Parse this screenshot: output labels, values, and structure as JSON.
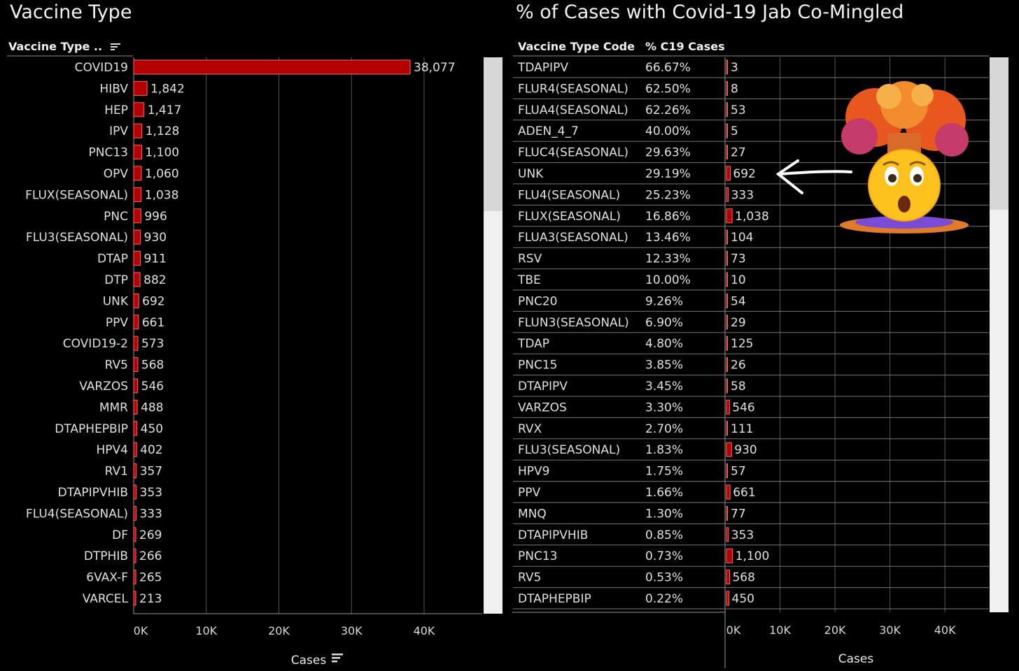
{
  "left_title": "Vaccine Type",
  "right_title": "% of Cases with Covid-19 Jab Co-Mingled",
  "left_header": "Vaccine Type ..",
  "right_header_code": "Vaccine Type Code",
  "right_header_pct": "% C19 Cases",
  "colors": {
    "bar": "#b30000",
    "bar_outline": "#ff6666",
    "background": "#000000",
    "grid": "#555555"
  },
  "icons": [
    "sort-icon",
    "exploding-head-emoji-icon",
    "arrow-left-icon"
  ],
  "chart_data": [
    {
      "type": "bar",
      "orientation": "horizontal",
      "title": "Vaccine Type",
      "xlabel": "Cases",
      "xlim": [
        0,
        48000
      ],
      "xticks": [
        "0K",
        "10K",
        "20K",
        "30K",
        "40K"
      ],
      "categories": [
        "COVID19",
        "HIBV",
        "HEP",
        "IPV",
        "PNC13",
        "OPV",
        "FLUX(SEASONAL)",
        "PNC",
        "FLU3(SEASONAL)",
        "DTAP",
        "DTP",
        "UNK",
        "PPV",
        "COVID19-2",
        "RV5",
        "VARZOS",
        "MMR",
        "DTAPHEPBIP",
        "HPV4",
        "RV1",
        "DTAPIPVHIB",
        "FLU4(SEASONAL)",
        "DF",
        "DTPHIB",
        "6VAX-F",
        "VARCEL"
      ],
      "values": [
        38077,
        1842,
        1417,
        1128,
        1100,
        1060,
        1038,
        996,
        930,
        911,
        882,
        692,
        661,
        573,
        568,
        546,
        488,
        450,
        402,
        357,
        353,
        333,
        269,
        266,
        265,
        213
      ],
      "value_labels": [
        "38,077",
        "1,842",
        "1,417",
        "1,128",
        "1,100",
        "1,060",
        "1,038",
        "996",
        "930",
        "911",
        "882",
        "692",
        "661",
        "573",
        "568",
        "546",
        "488",
        "450",
        "402",
        "357",
        "353",
        "333",
        "269",
        "266",
        "265",
        "213"
      ]
    },
    {
      "type": "bar",
      "orientation": "horizontal",
      "title": "% of Cases with Covid-19 Jab Co-Mingled",
      "xlabel": "Cases",
      "xlim": [
        0,
        48000
      ],
      "xticks": [
        "0K",
        "10K",
        "20K",
        "30K",
        "40K"
      ],
      "categories": [
        "TDAPIPV",
        "FLUR4(SEASONAL)",
        "FLUA4(SEASONAL)",
        "ADEN_4_7",
        "FLUC4(SEASONAL)",
        "UNK",
        "FLU4(SEASONAL)",
        "FLUX(SEASONAL)",
        "FLUA3(SEASONAL)",
        "RSV",
        "TBE",
        "PNC20",
        "FLUN3(SEASONAL)",
        "TDAP",
        "PNC15",
        "DTAPIPV",
        "VARZOS",
        "RVX",
        "FLU3(SEASONAL)",
        "HPV9",
        "PPV",
        "MNQ",
        "DTAPIPVHIB",
        "PNC13",
        "RV5",
        "DTAPHEPBIP"
      ],
      "pct_c19": [
        "66.67%",
        "62.50%",
        "62.26%",
        "40.00%",
        "29.63%",
        "29.19%",
        "25.23%",
        "16.86%",
        "13.46%",
        "12.33%",
        "10.00%",
        "9.26%",
        "6.90%",
        "4.80%",
        "3.85%",
        "3.45%",
        "3.30%",
        "2.70%",
        "1.83%",
        "1.75%",
        "1.66%",
        "1.30%",
        "0.85%",
        "0.73%",
        "0.53%",
        "0.22%"
      ],
      "values": [
        3,
        8,
        53,
        5,
        27,
        692,
        333,
        1038,
        104,
        73,
        10,
        54,
        29,
        125,
        26,
        58,
        546,
        111,
        930,
        57,
        661,
        77,
        353,
        1100,
        568,
        450
      ],
      "value_labels": [
        "3",
        "8",
        "53",
        "5",
        "27",
        "692",
        "333",
        "1,038",
        "104",
        "73",
        "10",
        "54",
        "29",
        "125",
        "26",
        "58",
        "546",
        "111",
        "930",
        "57",
        "661",
        "77",
        "353",
        "1,100",
        "568",
        "450"
      ]
    }
  ]
}
